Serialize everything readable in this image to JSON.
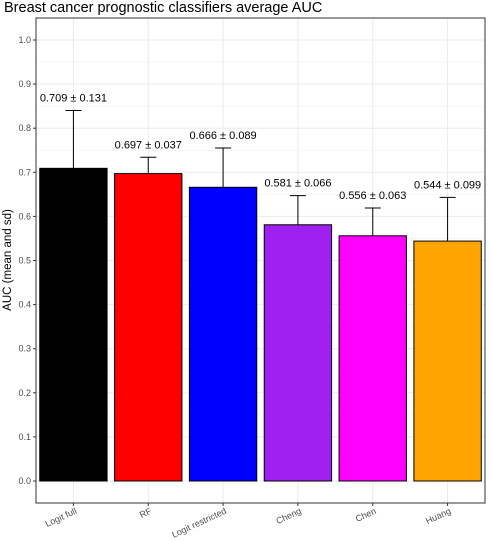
{
  "chart_data": {
    "type": "bar",
    "title": "Breast cancer prognostic classifiers average AUC",
    "xlabel": "",
    "ylabel": "AUC (mean and sd)",
    "categories": [
      "Logit full",
      "RF",
      "Logit restricted",
      "Cheng",
      "Chen",
      "Huang"
    ],
    "values": [
      0.709,
      0.697,
      0.666,
      0.581,
      0.556,
      0.544
    ],
    "errors": [
      0.131,
      0.037,
      0.089,
      0.066,
      0.063,
      0.099
    ],
    "labels": [
      "0.709 ± 0.131",
      "0.697 ± 0.037",
      "0.666 ± 0.089",
      "0.581 ± 0.066",
      "0.556 ± 0.063",
      "0.544 ± 0.099"
    ],
    "colors": [
      "#000000",
      "#ff0000",
      "#0000ff",
      "#a020f0",
      "#ff00ff",
      "#ffa500"
    ],
    "ylim": [
      0,
      1
    ],
    "yticks": [
      "0.0",
      "0.1",
      "0.2",
      "0.3",
      "0.4",
      "0.5",
      "0.6",
      "0.7",
      "0.8",
      "0.9",
      "1.0"
    ],
    "grid": true,
    "legend": "none"
  }
}
